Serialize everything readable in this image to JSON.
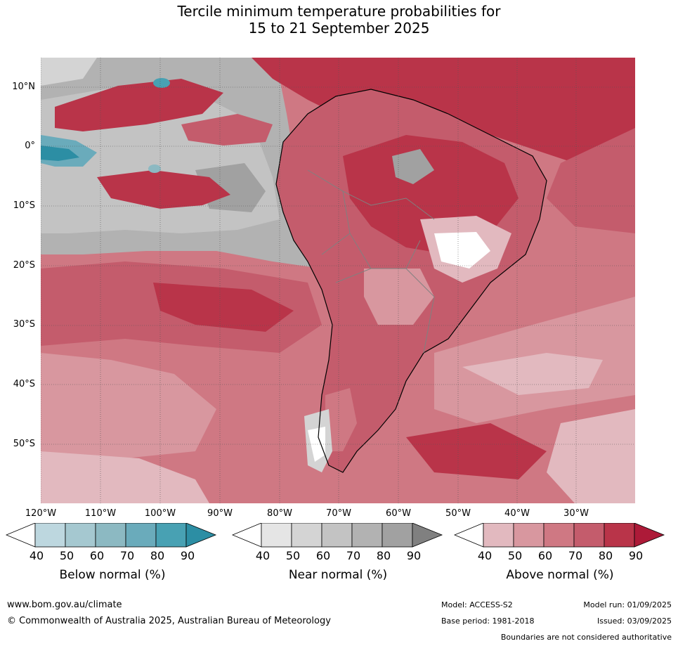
{
  "title": {
    "line1": "Tercile minimum temperature probabilities for",
    "line2": "15 to 21 September 2025"
  },
  "map": {
    "lat_labels": [
      "10°N",
      "0°",
      "10°S",
      "20°S",
      "30°S",
      "40°S",
      "50°S"
    ],
    "lon_labels": [
      "120°W",
      "110°W",
      "100°W",
      "90°W",
      "80°W",
      "70°W",
      "60°W",
      "50°W",
      "40°W",
      "30°W"
    ]
  },
  "legend": {
    "ticks": [
      "40",
      "50",
      "60",
      "70",
      "80",
      "90"
    ],
    "below": {
      "title": "Below normal (%)",
      "colors": [
        "#ffffff",
        "#bdd7df",
        "#a5c8d0",
        "#8cb9c2",
        "#6aabbb",
        "#48a1b3",
        "#2c8ea4"
      ]
    },
    "near": {
      "title": "Near normal (%)",
      "colors": [
        "#ffffff",
        "#e5e5e5",
        "#d4d4d4",
        "#c3c3c3",
        "#b2b2b2",
        "#a1a1a1",
        "#808080"
      ]
    },
    "above": {
      "title": "Above normal (%)",
      "colors": [
        "#ffffff",
        "#e2b9bf",
        "#d8979f",
        "#cf7883",
        "#c45c6c",
        "#b93449",
        "#ad1a38"
      ]
    }
  },
  "footer": {
    "url": "www.bom.gov.au/climate",
    "copyright": "© Commonwealth of Australia 2025, Australian Bureau of Meteorology",
    "model": "Model: ACCESS-S2",
    "base_period": "Base period: 1981-2018",
    "model_run": "Model run: 01/09/2025",
    "issued": "Issued: 03/09/2025",
    "disclaimer": "Boundaries are not considered authoritative"
  }
}
